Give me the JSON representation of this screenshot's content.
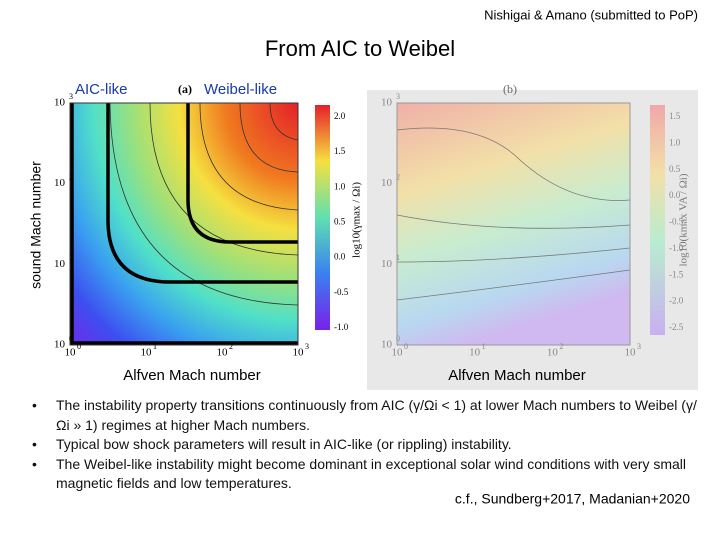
{
  "header": {
    "attribution": "Nishigai & Amano (submitted to PoP)",
    "title": "From AIC to Weibel"
  },
  "left_plot": {
    "label_left": "AIC-like",
    "panel": "(a)",
    "label_right": "Weibel-like",
    "y_label": "sound Mach number",
    "x_label": "Alfven Mach number",
    "x_ticks": [
      {
        "base": "10",
        "exp": "0"
      },
      {
        "base": "10",
        "exp": "1"
      },
      {
        "base": "10",
        "exp": "2"
      },
      {
        "base": "10",
        "exp": "3"
      }
    ],
    "y_ticks": [
      {
        "base": "10",
        "exp": "3"
      },
      {
        "base": "10",
        "exp": "2"
      },
      {
        "base": "10",
        "exp": "1"
      },
      {
        "base": "10",
        "exp": "0"
      }
    ],
    "colorbar_label": "log10(γmax / Ωi)",
    "colorbar_ticks": [
      "2.0",
      "1.5",
      "1.0",
      "0.5",
      "0.0",
      "-0.5",
      "-1.0"
    ]
  },
  "right_plot": {
    "panel": "(b)",
    "x_label": "Alfven Mach number",
    "x_ticks": [
      {
        "base": "10",
        "exp": "0"
      },
      {
        "base": "10",
        "exp": "1"
      },
      {
        "base": "10",
        "exp": "2"
      },
      {
        "base": "10",
        "exp": "3"
      }
    ],
    "y_ticks": [
      {
        "base": "10",
        "exp": "3"
      },
      {
        "base": "10",
        "exp": "2"
      },
      {
        "base": "10",
        "exp": "1"
      },
      {
        "base": "10",
        "exp": "0"
      }
    ],
    "colorbar_label": "log10(kmax VA / Ωi)",
    "colorbar_ticks": [
      "1.5",
      "1.0",
      "0.5",
      "0.0",
      "-0.5",
      "-1.0",
      "-1.5",
      "-2.0",
      "-2.5"
    ]
  },
  "bullets": [
    "The instability property transitions continuously from AIC (γ/Ωi < 1) at lower Mach numbers to Weibel (γ/Ωi » 1) regimes at higher Mach numbers.",
    "Typical bow shock parameters will result in AIC-like (or rippling) instability.",
    "The Weibel-like instability might become dominant in exceptional solar wind conditions with very small magnetic fields and low temperatures."
  ],
  "citation": "c.f., Sundberg+2017, Madanian+2020"
}
